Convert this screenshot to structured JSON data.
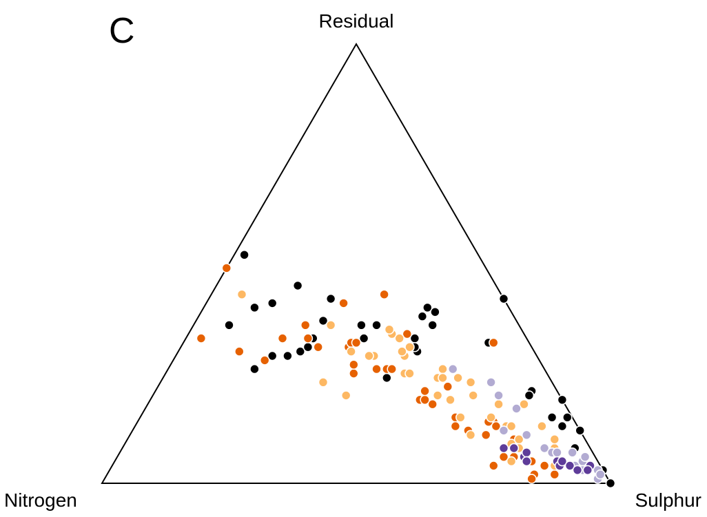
{
  "chart_data": {
    "type": "scatter",
    "subtype": "ternary",
    "panel_label": "C",
    "vertices": {
      "top": "Residual",
      "left": "Nitrogen",
      "right": "Sulphur"
    },
    "grid": false,
    "legend": false,
    "colors": {
      "black": "#000000",
      "dark_orange": "#e66101",
      "light_orange": "#fdb863",
      "light_purple": "#b2abd2",
      "dark_purple": "#5e3c99"
    },
    "series": [
      {
        "color": "black",
        "points": [
          [
            0.33,
            0.42,
            0.25
          ],
          [
            0.3,
            0.46,
            0.24
          ],
          [
            0.31,
            0.44,
            0.25
          ],
          [
            0.26,
            0.57,
            0.17
          ],
          [
            0.29,
            0.49,
            0.22
          ],
          [
            0.29,
            0.52,
            0.19
          ],
          [
            0.36,
            0.57,
            0.07
          ],
          [
            0.4,
            0.5,
            0.1
          ],
          [
            0.41,
            0.46,
            0.13
          ],
          [
            0.37,
            0.38,
            0.25
          ],
          [
            0.52,
            0.46,
            0.02
          ],
          [
            0.33,
            0.32,
            0.35
          ],
          [
            0.36,
            0.31,
            0.33
          ],
          [
            0.36,
            0.28,
            0.36
          ],
          [
            0.45,
            0.39,
            0.16
          ],
          [
            0.42,
            0.34,
            0.24
          ],
          [
            0.41,
            0.32,
            0.27
          ],
          [
            0.24,
            0.32,
            0.44
          ],
          [
            0.33,
            0.22,
            0.45
          ],
          [
            0.3,
            0.23,
            0.47
          ],
          [
            0.38,
            0.18,
            0.44
          ],
          [
            0.39,
            0.15,
            0.46
          ],
          [
            0.36,
            0.17,
            0.47
          ],
          [
            0.4,
            0.16,
            0.44
          ],
          [
            0.32,
            0.08,
            0.6
          ],
          [
            0.21,
            0.05,
            0.74
          ],
          [
            0.15,
            0.04,
            0.81
          ],
          [
            0.13,
            0.03,
            0.84
          ],
          [
            0.08,
            0.03,
            0.89
          ],
          [
            0.15,
            0.01,
            0.84
          ],
          [
            0.19,
            0.0,
            0.81
          ],
          [
            0.12,
            0.0,
            0.88
          ],
          [
            0.04,
            0.02,
            0.94
          ],
          [
            0.03,
            0.0,
            0.97
          ],
          [
            0.0,
            0.0,
            1.0
          ],
          [
            0.31,
            0.23,
            0.46
          ],
          [
            0.2,
            0.06,
            0.74
          ],
          [
            0.42,
            0.0,
            0.58
          ]
        ]
      },
      {
        "color": "dark_orange",
        "points": [
          [
            0.49,
            0.51,
            0.0
          ],
          [
            0.33,
            0.64,
            0.03
          ],
          [
            0.3,
            0.58,
            0.12
          ],
          [
            0.28,
            0.54,
            0.18
          ],
          [
            0.33,
            0.48,
            0.19
          ],
          [
            0.33,
            0.43,
            0.24
          ],
          [
            0.36,
            0.42,
            0.22
          ],
          [
            0.31,
            0.42,
            0.27
          ],
          [
            0.31,
            0.36,
            0.33
          ],
          [
            0.43,
            0.23,
            0.34
          ],
          [
            0.32,
            0.35,
            0.33
          ],
          [
            0.32,
            0.34,
            0.34
          ],
          [
            0.25,
            0.38,
            0.37
          ],
          [
            0.27,
            0.37,
            0.36
          ],
          [
            0.26,
            0.33,
            0.41
          ],
          [
            0.26,
            0.31,
            0.43
          ],
          [
            0.26,
            0.3,
            0.44
          ],
          [
            0.19,
            0.28,
            0.53
          ],
          [
            0.18,
            0.26,
            0.56
          ],
          [
            0.13,
            0.24,
            0.63
          ],
          [
            0.15,
            0.23,
            0.62
          ],
          [
            0.11,
            0.19,
            0.7
          ],
          [
            0.14,
            0.16,
            0.7
          ],
          [
            0.06,
            0.16,
            0.78
          ],
          [
            0.04,
            0.21,
            0.75
          ],
          [
            0.06,
            0.18,
            0.76
          ],
          [
            0.1,
            0.14,
            0.76
          ],
          [
            0.02,
            0.14,
            0.84
          ],
          [
            0.01,
            0.15,
            0.84
          ],
          [
            0.02,
            0.1,
            0.88
          ],
          [
            0.13,
            0.24,
            0.63
          ],
          [
            0.12,
            0.22,
            0.66
          ],
          [
            0.14,
            0.17,
            0.69
          ],
          [
            0.41,
            0.32,
            0.27
          ],
          [
            0.34,
            0.23,
            0.43
          ],
          [
            0.33,
            0.25,
            0.42
          ],
          [
            0.19,
            0.27,
            0.54
          ],
          [
            0.21,
            0.26,
            0.53
          ],
          [
            0.22,
            0.21,
            0.57
          ],
          [
            0.32,
            0.07,
            0.61
          ],
          [
            0.13,
            0.16,
            0.71
          ],
          [
            0.05,
            0.14,
            0.81
          ],
          [
            0.05,
            0.13,
            0.82
          ],
          [
            0.04,
            0.11,
            0.85
          ]
        ]
      },
      {
        "color": "light_orange",
        "points": [
          [
            0.43,
            0.51,
            0.06
          ],
          [
            0.23,
            0.45,
            0.32
          ],
          [
            0.2,
            0.42,
            0.38
          ],
          [
            0.29,
            0.32,
            0.39
          ],
          [
            0.36,
            0.37,
            0.27
          ],
          [
            0.25,
            0.28,
            0.47
          ],
          [
            0.34,
            0.26,
            0.4
          ],
          [
            0.35,
            0.26,
            0.39
          ],
          [
            0.24,
            0.22,
            0.54
          ],
          [
            0.3,
            0.36,
            0.34
          ],
          [
            0.29,
            0.33,
            0.38
          ],
          [
            0.11,
            0.22,
            0.67
          ],
          [
            0.33,
            0.25,
            0.42
          ],
          [
            0.31,
            0.24,
            0.45
          ],
          [
            0.26,
            0.2,
            0.54
          ],
          [
            0.24,
            0.18,
            0.58
          ],
          [
            0.2,
            0.17,
            0.63
          ],
          [
            0.23,
            0.16,
            0.61
          ],
          [
            0.18,
            0.13,
            0.69
          ],
          [
            0.13,
            0.14,
            0.73
          ],
          [
            0.13,
            0.13,
            0.74
          ],
          [
            0.09,
            0.15,
            0.76
          ],
          [
            0.1,
            0.13,
            0.77
          ],
          [
            0.08,
            0.07,
            0.85
          ],
          [
            0.1,
            0.06,
            0.84
          ],
          [
            0.13,
            0.07,
            0.8
          ],
          [
            0.18,
            0.08,
            0.74
          ],
          [
            0.05,
            0.17,
            0.78
          ],
          [
            0.04,
            0.09,
            0.87
          ],
          [
            0.08,
            0.14,
            0.78
          ],
          [
            0.29,
            0.26,
            0.45
          ],
          [
            0.3,
            0.26,
            0.44
          ],
          [
            0.25,
            0.27,
            0.48
          ],
          [
            0.2,
            0.24,
            0.56
          ],
          [
            0.19,
            0.22,
            0.59
          ],
          [
            0.15,
            0.16,
            0.69
          ],
          [
            0.15,
            0.22,
            0.63
          ],
          [
            0.24,
            0.21,
            0.55
          ]
        ]
      },
      {
        "color": "light_purple",
        "points": [
          [
            0.26,
            0.18,
            0.56
          ],
          [
            0.23,
            0.12,
            0.65
          ],
          [
            0.2,
            0.12,
            0.68
          ],
          [
            0.17,
            0.1,
            0.73
          ],
          [
            0.12,
            0.15,
            0.73
          ],
          [
            0.11,
            0.11,
            0.78
          ],
          [
            0.07,
            0.04,
            0.89
          ],
          [
            0.05,
            0.03,
            0.92
          ],
          [
            0.06,
            0.02,
            0.92
          ],
          [
            0.03,
            0.01,
            0.96
          ],
          [
            0.01,
            0.02,
            0.97
          ],
          [
            0.02,
            0.01,
            0.97
          ],
          [
            0.08,
            0.09,
            0.83
          ],
          [
            0.07,
            0.08,
            0.85
          ],
          [
            0.07,
            0.07,
            0.86
          ],
          [
            0.04,
            0.05,
            0.91
          ],
          [
            0.03,
            0.04,
            0.93
          ]
        ]
      },
      {
        "color": "dark_purple",
        "points": [
          [
            0.08,
            0.17,
            0.75
          ],
          [
            0.08,
            0.15,
            0.77
          ],
          [
            0.06,
            0.14,
            0.8
          ],
          [
            0.07,
            0.13,
            0.8
          ],
          [
            0.05,
            0.14,
            0.81
          ],
          [
            0.08,
            0.15,
            0.77
          ],
          [
            0.05,
            0.08,
            0.87
          ],
          [
            0.04,
            0.08,
            0.88
          ],
          [
            0.05,
            0.07,
            0.88
          ],
          [
            0.04,
            0.06,
            0.9
          ],
          [
            0.03,
            0.05,
            0.92
          ],
          [
            0.04,
            0.02,
            0.94
          ],
          [
            0.03,
            0.03,
            0.94
          ],
          [
            0.05,
            0.14,
            0.81
          ]
        ]
      }
    ]
  }
}
